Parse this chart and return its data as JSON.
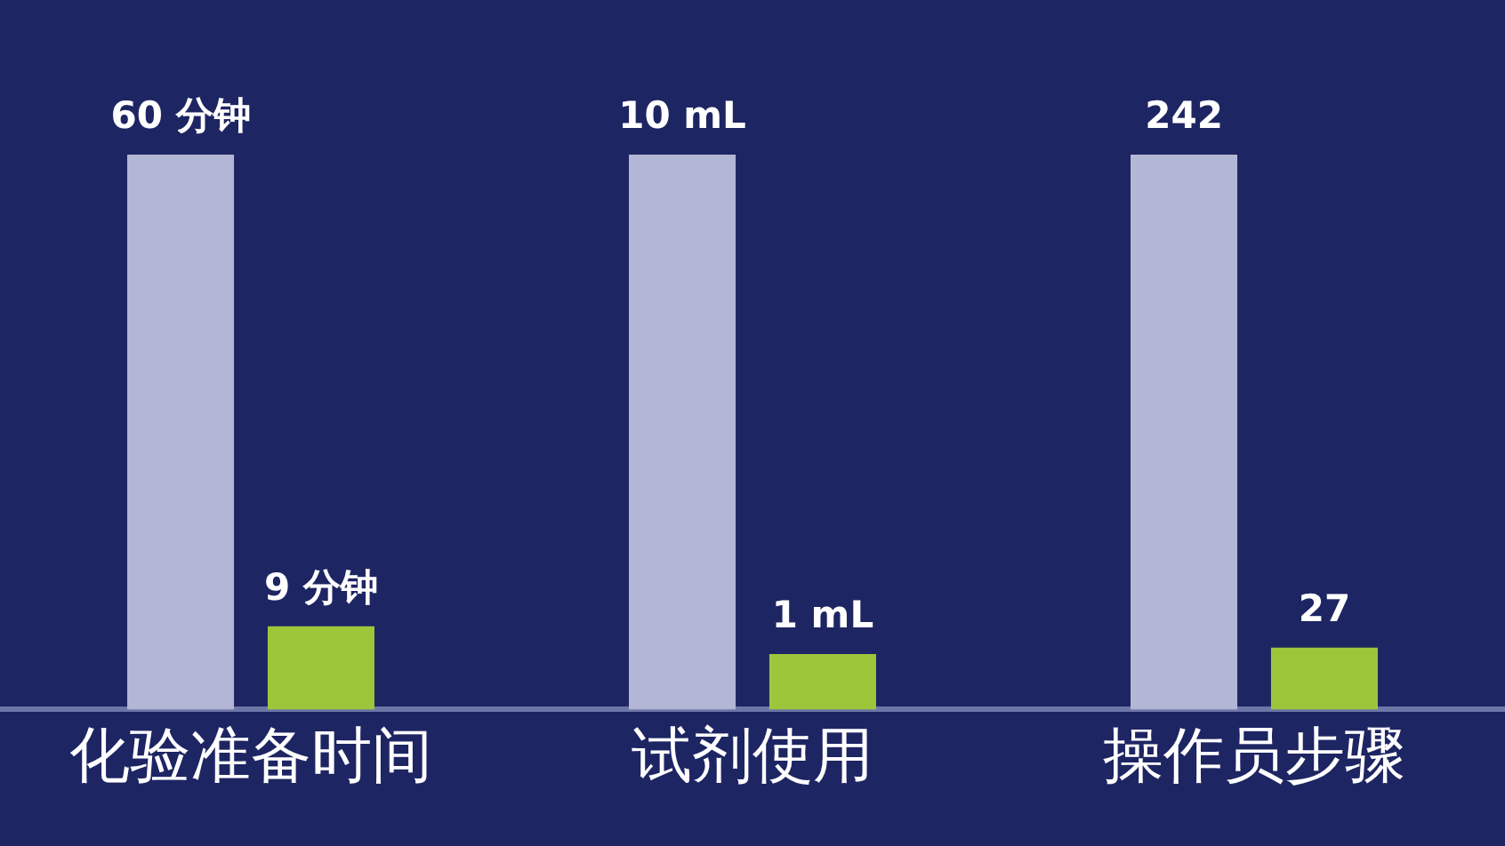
{
  "chart_data": [
    {
      "type": "bar",
      "categories": [
        "化验准备时间"
      ],
      "tick_labels": "x",
      "grid": false,
      "series": [
        {
          "color": "#b4b6d6",
          "values": [
            60
          ],
          "value_labels": [
            "60 分钟"
          ]
        },
        {
          "color": "#9dc63b",
          "values": [
            9
          ],
          "value_labels": [
            "9 分钟"
          ]
        }
      ]
    },
    {
      "type": "bar",
      "categories": [
        "试剂使用"
      ],
      "tick_labels": "x",
      "grid": false,
      "series": [
        {
          "color": "#b4b6d6",
          "values": [
            10
          ],
          "value_labels": [
            "10 mL"
          ]
        },
        {
          "color": "#9dc63b",
          "values": [
            1
          ],
          "value_labels": [
            "1 mL"
          ]
        }
      ]
    },
    {
      "type": "bar",
      "categories": [
        "操作员步骤"
      ],
      "tick_labels": "x",
      "grid": false,
      "series": [
        {
          "color": "#b4b6d6",
          "values": [
            242
          ],
          "value_labels": [
            "242"
          ]
        },
        {
          "color": "#9dc63b",
          "values": [
            27
          ],
          "value_labels": [
            "27"
          ]
        }
      ]
    }
  ]
}
